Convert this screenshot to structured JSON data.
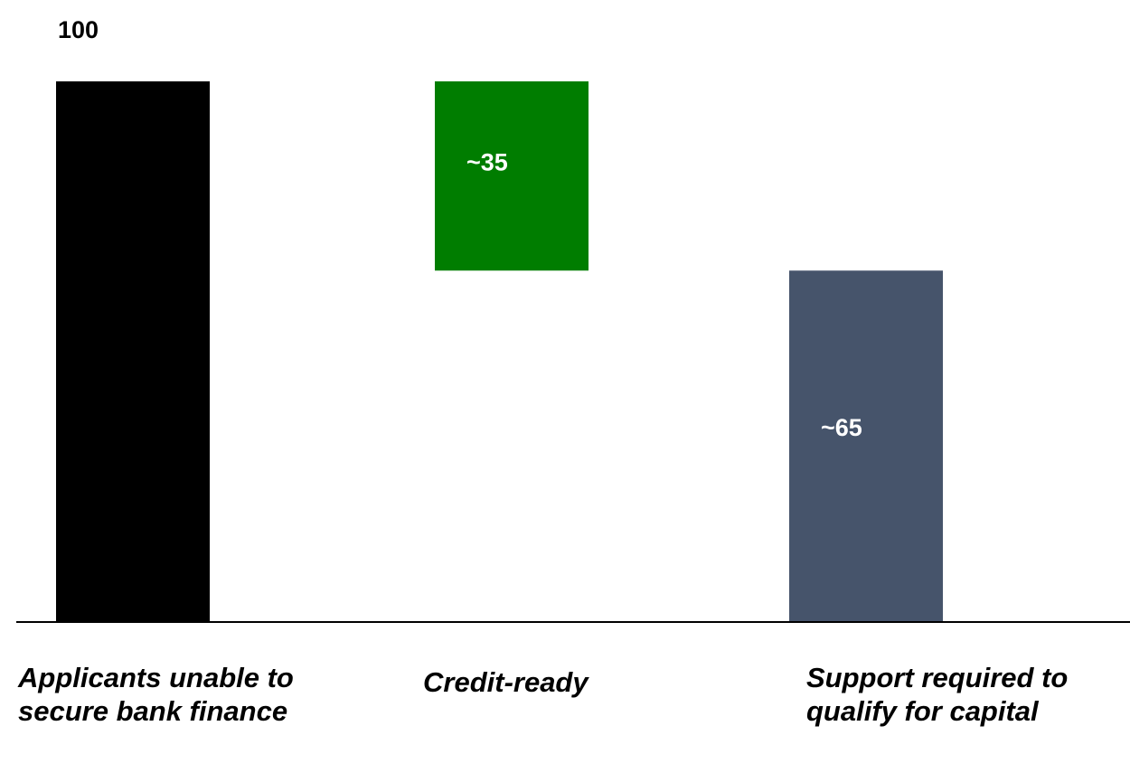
{
  "chart_data": {
    "type": "bar",
    "subtype": "waterfall",
    "categories": [
      "Applicants unable to secure bank finance",
      "Credit-ready",
      "Support required to qualify for capital"
    ],
    "values": [
      100,
      35,
      65
    ],
    "data_labels": [
      "100",
      "~35",
      "~65"
    ],
    "bars": [
      {
        "category": "Applicants unable to secure bank finance",
        "start": 0,
        "end": 100,
        "color": "#000000",
        "label": "100",
        "label_color": "#000000",
        "label_position": "above"
      },
      {
        "category": "Credit-ready",
        "start": 65,
        "end": 100,
        "color": "#007d00",
        "label": "~35",
        "label_color": "#ffffff",
        "label_position": "inside"
      },
      {
        "category": "Support required to qualify for capital",
        "start": 0,
        "end": 65,
        "color": "#46546b",
        "label": "~65",
        "label_color": "#ffffff",
        "label_position": "inside"
      }
    ],
    "title": "",
    "xlabel": "",
    "ylabel": "",
    "ylim": [
      0,
      100
    ],
    "grid": false,
    "legend": "none",
    "baseline_color": "#000000"
  }
}
